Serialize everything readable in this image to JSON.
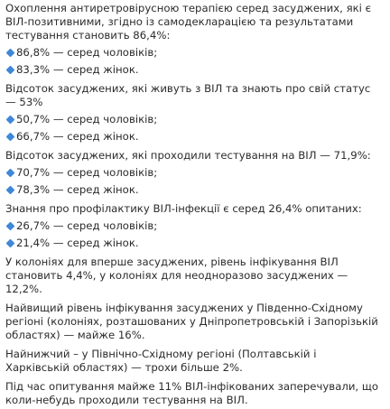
{
  "colors": {
    "text": "#2b2b2b",
    "bullet": "#3f88d8"
  },
  "icons": {
    "bullet": "blue-diamond-icon"
  },
  "sections": [
    {
      "text": "Охоплення антиретровірусною терапією серед засуджених, які є ВІЛ-позитивними, згідно із самодекларацією та результатами тестування становить 86,4%:",
      "bullets": [
        "86,8% — серед чоловіків;",
        "83,3% — серед жінок."
      ]
    },
    {
      "text": "Відсоток засуджених, які живуть з ВІЛ та знають про свій статус — 53%",
      "bullets": [
        "50,7% — серед чоловіків;",
        "66,7% — серед жінок."
      ]
    },
    {
      "text": "Відсоток засуджених, які проходили тестування на ВІЛ — 71,9%:",
      "bullets": [
        "70,7% — серед чоловіків;",
        "78,3% — серед жінок."
      ]
    },
    {
      "text": "Знання про профілактику ВІЛ-інфекції є серед 26,4% опитаних:",
      "bullets": [
        "26,7% — серед чоловіків;",
        "21,4% — серед жінок."
      ]
    }
  ],
  "paragraphs": [
    "У колоніях для вперше засуджених, рівень інфікування ВІЛ становить 4,4%, у колоніях для неодноразово засуджених —12,2%.",
    "Найвищий рівень інфікування засуджених у Південно-Східному регіоні (колоніях, розташованих у Дніпропетровській і Запорізькій областях) — майже 16%.",
    "Найнижчий – у Північно-Східному регіоні (Полтавській і Харківській областях) — трохи більше 2%.",
    "Під час опитування майже 11% ВІЛ-інфікованих заперечували, що коли-небудь проходили тестування на ВІЛ."
  ]
}
